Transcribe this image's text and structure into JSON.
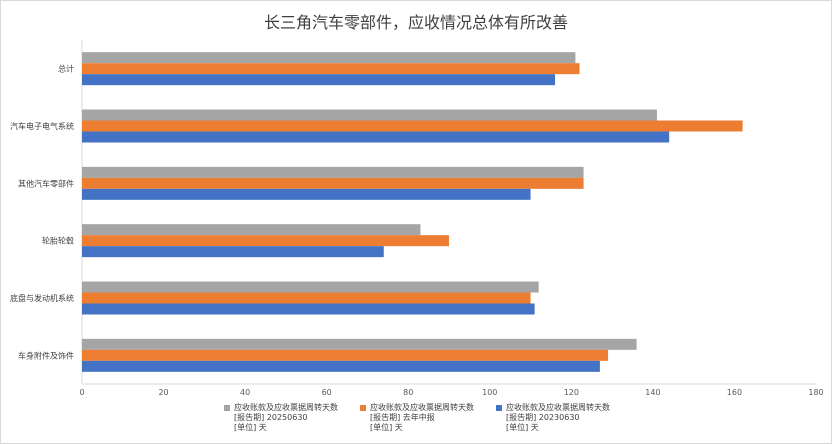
{
  "chart_data": {
    "type": "bar",
    "orientation": "horizontal",
    "title": "长三角汽车零部件，应收情况总体有所改善",
    "categories": [
      "车身附件及饰件",
      "底盘与发动机系统",
      "轮胎轮毂",
      "其他汽车零部件",
      "汽车电子电气系统",
      "总计"
    ],
    "xlim": [
      0,
      180
    ],
    "xticks": [
      "0",
      "20",
      "40",
      "60",
      "80",
      "100",
      "120",
      "140",
      "160",
      "180"
    ],
    "grid": false,
    "legend_position": "bottom",
    "series": [
      {
        "name": "应收账款及应收票据周转天数",
        "period": "[报告期] 20230630",
        "unit": "[单位] 天",
        "color": "#4472c4",
        "values": [
          127,
          111,
          74,
          110,
          144,
          116
        ]
      },
      {
        "name": "应收账款及应收票据周转天数",
        "period": "[报告期] 去年中报",
        "unit": "[单位] 天",
        "color": "#ed7d31",
        "values": [
          129,
          110,
          90,
          123,
          162,
          122
        ]
      },
      {
        "name": "应收账款及应收票据周转天数",
        "period": "[报告期] 20250630",
        "unit": "[单位] 天",
        "color": "#a5a5a5",
        "values": [
          136,
          112,
          83,
          123,
          141,
          121
        ]
      }
    ],
    "legend_order": [
      2,
      1,
      0
    ]
  }
}
